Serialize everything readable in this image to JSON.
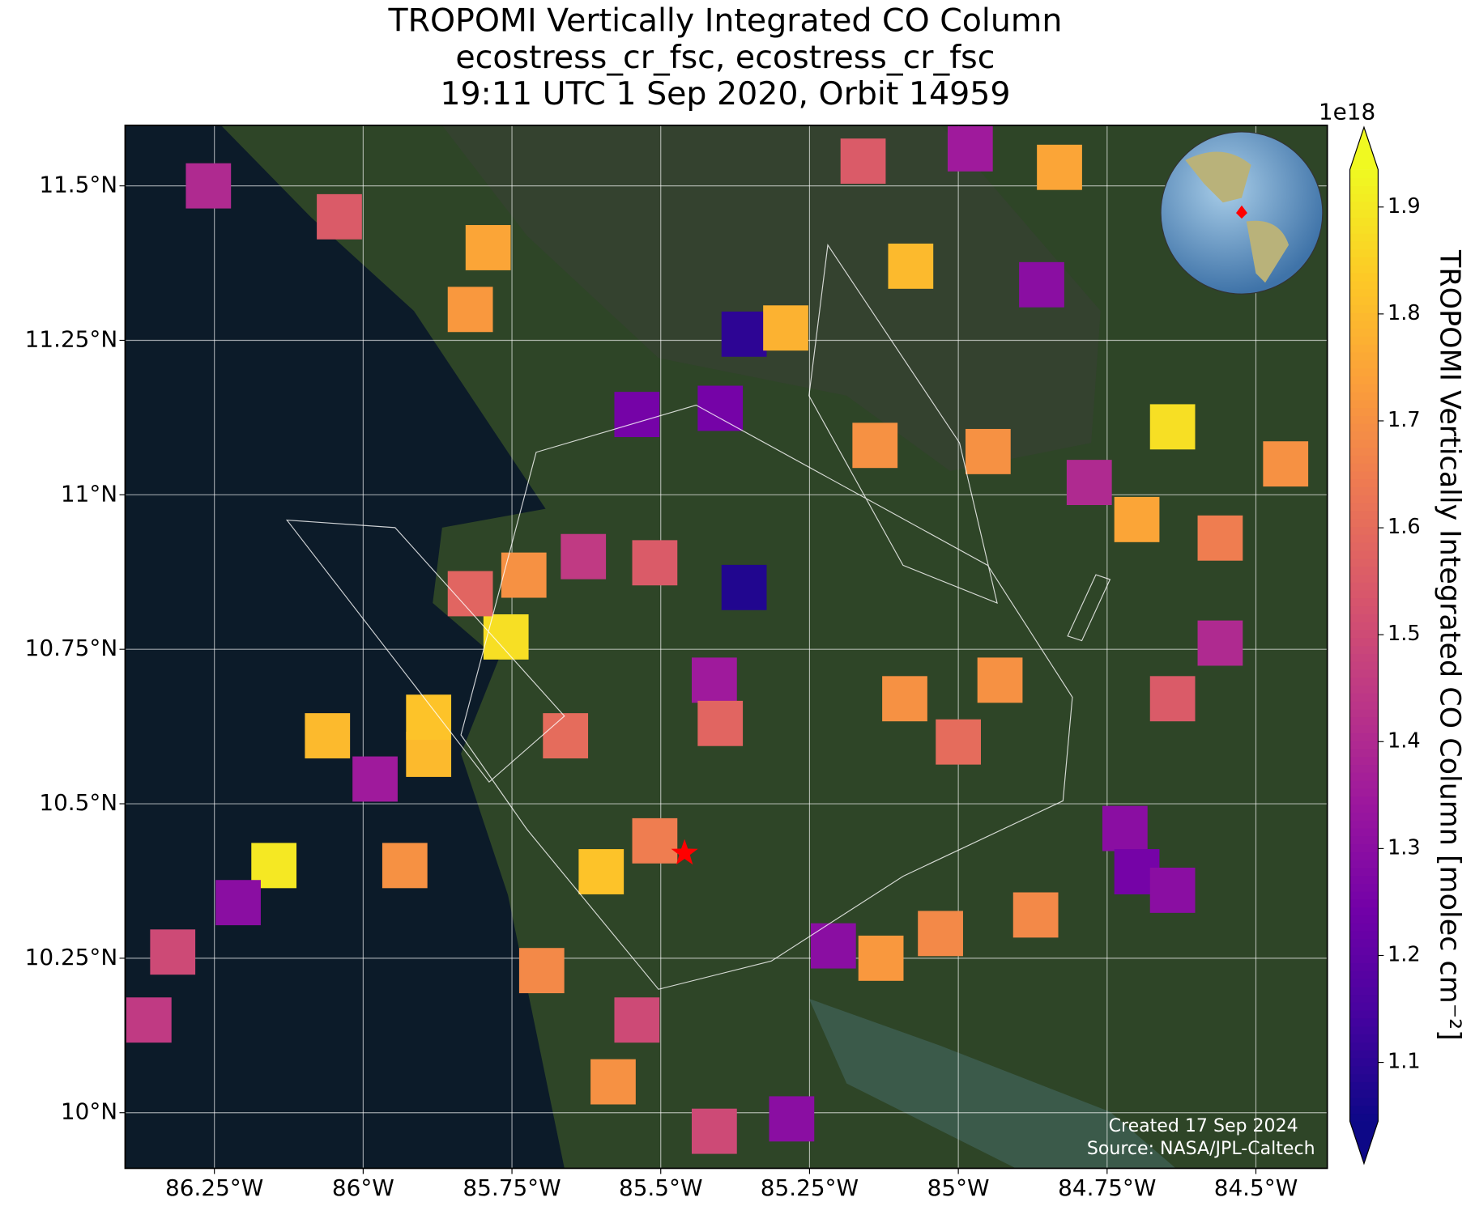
{
  "title": [
    "TROPOMI Vertically Integrated CO Column",
    "ecostress_cr_fsc, ecostress_cr_fsc",
    "19:11 UTC 1 Sep 2020, Orbit 14959"
  ],
  "map": {
    "xlim": [
      -86.4,
      -84.38
    ],
    "ylim": [
      9.91,
      11.598
    ],
    "xticks": [
      {
        "value": -86.25,
        "label": "86.25°W"
      },
      {
        "value": -86,
        "label": "86°W"
      },
      {
        "value": -85.75,
        "label": "85.75°W"
      },
      {
        "value": -85.5,
        "label": "85.5°W"
      },
      {
        "value": -85.25,
        "label": "85.25°W"
      },
      {
        "value": -85,
        "label": "85°W"
      },
      {
        "value": -84.75,
        "label": "84.75°W"
      },
      {
        "value": -84.5,
        "label": "84.5°W"
      }
    ],
    "yticks": [
      {
        "value": 10,
        "label": "10°N"
      },
      {
        "value": 10.25,
        "label": "10.25°N"
      },
      {
        "value": 10.5,
        "label": "10.5°N"
      },
      {
        "value": 10.75,
        "label": "10.75°N"
      },
      {
        "value": 11,
        "label": "11°N"
      },
      {
        "value": 11.25,
        "label": "11.25°N"
      },
      {
        "value": 11.5,
        "label": "11.5°N"
      }
    ],
    "grid": true,
    "cmap": "plasma",
    "pixels": {
      "lon": [
        -85.76,
        -84.64,
        -86.15,
        -85.36,
        -85.36,
        -85.29,
        -86.21,
        -86.32,
        -86.36,
        -86.26,
        -86.04,
        -85.16,
        -84.98,
        -84.83,
        -85.08,
        -84.86,
        -84.95,
        -85.14,
        -84.78,
        -84.7,
        -84.56,
        -84.45,
        -84.56,
        -84.64,
        -84.72,
        -84.7,
        -84.64,
        -84.87,
        -85.13,
        -85.03,
        -85.21,
        -85.6,
        -85.7,
        -85.54,
        -85.58,
        -85.28,
        -85.41,
        -85.98,
        -85.89,
        -85.89,
        -86.06,
        -85.93,
        -84.93,
        -85.09,
        -85.0,
        -85.51,
        -85.63,
        -85.73,
        -85.82,
        -85.54,
        -85.4,
        -85.79,
        -85.82,
        -85.41,
        -85.51,
        -85.4,
        -85.66
      ],
      "lat": [
        10.77,
        11.11,
        10.4,
        10.85,
        11.26,
        11.27,
        10.34,
        10.26,
        10.15,
        11.5,
        11.45,
        11.54,
        11.56,
        11.53,
        11.37,
        11.34,
        11.07,
        11.08,
        11.02,
        10.96,
        10.93,
        11.05,
        10.76,
        10.67,
        10.46,
        10.39,
        10.36,
        10.32,
        10.25,
        10.29,
        10.27,
        10.39,
        10.23,
        10.15,
        10.05,
        9.99,
        9.97,
        10.54,
        10.58,
        10.64,
        10.61,
        10.4,
        10.7,
        10.67,
        10.6,
        10.89,
        10.9,
        10.87,
        10.84,
        11.13,
        11.14,
        11.4,
        11.3,
        10.7,
        10.44,
        10.63,
        10.61
      ],
      "values": [
        1.88,
        1.88,
        1.9,
        1.08,
        1.1,
        1.78,
        1.3,
        1.5,
        1.45,
        1.4,
        1.55,
        1.55,
        1.35,
        1.75,
        1.8,
        1.3,
        1.7,
        1.7,
        1.4,
        1.75,
        1.65,
        1.7,
        1.4,
        1.55,
        1.3,
        1.25,
        1.3,
        1.68,
        1.72,
        1.68,
        1.3,
        1.82,
        1.68,
        1.5,
        1.7,
        1.3,
        1.5,
        1.35,
        1.8,
        1.82,
        1.8,
        1.7,
        1.7,
        1.7,
        1.6,
        1.55,
        1.45,
        1.7,
        1.58,
        1.25,
        1.25,
        1.75,
        1.72,
        1.35,
        1.65,
        1.58,
        1.6
      ]
    },
    "marker": {
      "lon": -85.46,
      "lat": 10.42,
      "color": "#ff0000"
    },
    "credits": [
      "Created 17 Sep 2024",
      "Source: NASA/JPL-Caltech"
    ]
  },
  "colorbar": {
    "label": "TROPOMI Vertically Integrated CO Column [molec cm⁻²]",
    "exponent": "1e18",
    "clim": [
      1.045,
      1.935
    ],
    "ticks": [
      1.1,
      1.2,
      1.3,
      1.4,
      1.5,
      1.6,
      1.7,
      1.8,
      1.9
    ],
    "extend": "both"
  }
}
